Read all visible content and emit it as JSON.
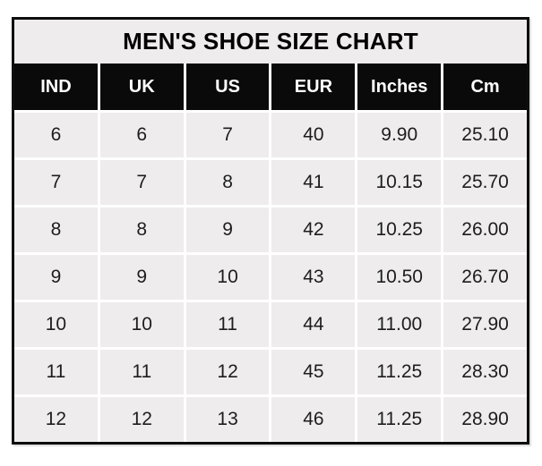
{
  "page": {
    "title": "MEN'S SHOE SIZE CHART"
  },
  "colors": {
    "page_bg": "#ffffff",
    "table_border": "#0e0e0e",
    "title_bg": "#eeecec",
    "title_text": "#000000",
    "header_bg": "#0a0a0a",
    "header_text": "#ffffff",
    "cell_bg": "#eeecec",
    "cell_text": "#1d1d1d",
    "gridline": "#ffffff"
  },
  "chart_data": {
    "type": "table",
    "title": "MEN'S SHOE SIZE CHART",
    "columns": [
      "IND",
      "UK",
      "US",
      "EUR",
      "Inches",
      "Cm"
    ],
    "rows": [
      [
        "6",
        "6",
        "7",
        "40",
        "9.90",
        "25.10"
      ],
      [
        "7",
        "7",
        "8",
        "41",
        "10.15",
        "25.70"
      ],
      [
        "8",
        "8",
        "9",
        "42",
        "10.25",
        "26.00"
      ],
      [
        "9",
        "9",
        "10",
        "43",
        "10.50",
        "26.70"
      ],
      [
        "10",
        "10",
        "11",
        "44",
        "11.00",
        "27.90"
      ],
      [
        "11",
        "11",
        "12",
        "45",
        "11.25",
        "28.30"
      ],
      [
        "12",
        "12",
        "13",
        "46",
        "11.25",
        "28.90"
      ]
    ],
    "layout": {
      "grid": "white gridlines between equal-width columns",
      "legend": "none",
      "column_count": 6,
      "row_count": 7
    }
  }
}
